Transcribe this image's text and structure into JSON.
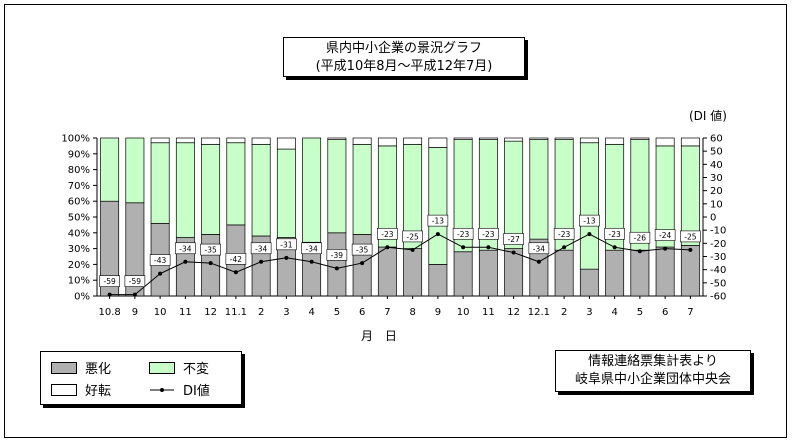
{
  "title": {
    "line1": "県内中小企業の景況グラフ",
    "line2": "(平成10年8月〜平成12年7月)"
  },
  "y2_unit_label": "(DI 値)",
  "xlabel": "月 日",
  "legend": {
    "worse": "悪化",
    "same": "不変",
    "better": "好転",
    "di": "DI値"
  },
  "source": {
    "line1": "情報連絡票集計表より",
    "line2": "岐阜県中小企業団体中央会"
  },
  "colors": {
    "worse": "#b0b0b0",
    "same": "#c8ffc8",
    "better": "#ffffff",
    "di_line": "#000000"
  },
  "chart_data": {
    "type": "bar",
    "stacked": true,
    "categories": [
      "10.8",
      "9",
      "10",
      "11",
      "12",
      "11.1",
      "2",
      "3",
      "4",
      "5",
      "6",
      "7",
      "8",
      "9",
      "10",
      "11",
      "12",
      "12.1",
      "2",
      "3",
      "4",
      "5",
      "6",
      "7"
    ],
    "series": [
      {
        "name": "悪化",
        "values": [
          60,
          59,
          46,
          37,
          39,
          45,
          38,
          37,
          34,
          40,
          39,
          31,
          30,
          20,
          28,
          29,
          30,
          36,
          29,
          17,
          29,
          29,
          31,
          32
        ]
      },
      {
        "name": "不変",
        "values": [
          40,
          41,
          51,
          60,
          57,
          52,
          58,
          56,
          66,
          59,
          57,
          64,
          66,
          74,
          71,
          70,
          68,
          63,
          70,
          80,
          67,
          70,
          64,
          63
        ]
      },
      {
        "name": "好転",
        "values": [
          0,
          0,
          3,
          3,
          4,
          3,
          4,
          7,
          0,
          1,
          4,
          5,
          4,
          6,
          1,
          1,
          2,
          1,
          1,
          3,
          4,
          1,
          5,
          5
        ]
      }
    ],
    "line_series": {
      "name": "DI値",
      "axis": "right",
      "values": [
        -59,
        -59,
        -43,
        -34,
        -35,
        -42,
        -34,
        -31,
        -34,
        -39,
        -35,
        -23,
        -25,
        -13,
        -23,
        -23,
        -27,
        -34,
        -23,
        -13,
        -23,
        -26,
        -24,
        -25
      ]
    },
    "yticks": [
      "0%",
      "10%",
      "20%",
      "30%",
      "40%",
      "50%",
      "60%",
      "70%",
      "80%",
      "90%",
      "100%"
    ],
    "y2ticks": [
      "-60",
      "-50",
      "-40",
      "-30",
      "-20",
      "-10",
      "0",
      "10",
      "20",
      "30",
      "40",
      "50",
      "60"
    ],
    "ylim": [
      0,
      100
    ],
    "y2lim": [
      -60,
      60
    ],
    "xlabel": "月 日",
    "grid": false,
    "legend_position": "bottom-left"
  }
}
